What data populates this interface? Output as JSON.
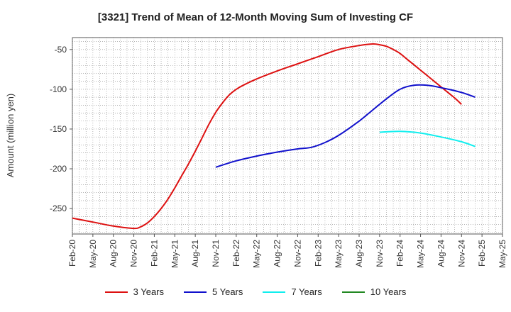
{
  "chart_data": {
    "type": "line",
    "title": "[3321]  Trend of Mean of 12-Month Moving Sum of Investing CF",
    "ylabel": "Amount (million yen)",
    "xlabel": "",
    "ylim": [
      -282,
      -35
    ],
    "yticks": [
      -50,
      -100,
      -150,
      -200,
      -250
    ],
    "xticks": [
      "Feb-20",
      "May-20",
      "Aug-20",
      "Nov-20",
      "Feb-21",
      "May-21",
      "Aug-21",
      "Nov-21",
      "Feb-22",
      "May-22",
      "Aug-22",
      "Nov-22",
      "Feb-23",
      "May-23",
      "Aug-23",
      "Nov-23",
      "Feb-24",
      "May-24",
      "Aug-24",
      "Nov-24",
      "Feb-25",
      "May-25"
    ],
    "grid": true,
    "legend_position": "bottom",
    "series": [
      {
        "name": "3 Years",
        "color": "#dd1111",
        "points": [
          [
            "Feb-20",
            -262
          ],
          [
            "May-20",
            -267
          ],
          [
            "Aug-20",
            -272
          ],
          [
            "Nov-20",
            -275
          ],
          [
            "Dec-20",
            -273
          ],
          [
            "Jan-21",
            -268
          ],
          [
            "Feb-21",
            -260
          ],
          [
            "Mar-21",
            -250
          ],
          [
            "Apr-21",
            -238
          ],
          [
            "May-21",
            -224
          ],
          [
            "Jun-21",
            -209
          ],
          [
            "Jul-21",
            -194
          ],
          [
            "Aug-21",
            -178
          ],
          [
            "Sep-21",
            -161
          ],
          [
            "Oct-21",
            -144
          ],
          [
            "Nov-21",
            -129
          ],
          [
            "Dec-21",
            -117
          ],
          [
            "Jan-22",
            -107
          ],
          [
            "Feb-22",
            -100
          ],
          [
            "Mar-22",
            -95
          ],
          [
            "May-22",
            -87
          ],
          [
            "Aug-22",
            -77
          ],
          [
            "Nov-22",
            -68
          ],
          [
            "Feb-23",
            -59
          ],
          [
            "May-23",
            -50
          ],
          [
            "Aug-23",
            -45
          ],
          [
            "Oct-23",
            -43
          ],
          [
            "Nov-23",
            -44
          ],
          [
            "Dec-23",
            -46
          ],
          [
            "Jan-24",
            -50
          ],
          [
            "Feb-24",
            -55
          ],
          [
            "Mar-24",
            -62
          ],
          [
            "May-24",
            -76
          ],
          [
            "Aug-24",
            -97
          ],
          [
            "Oct-24",
            -111
          ],
          [
            "Nov-24",
            -119
          ]
        ]
      },
      {
        "name": "5 Years",
        "color": "#1111cc",
        "points": [
          [
            "Nov-21",
            -198
          ],
          [
            "Feb-22",
            -190
          ],
          [
            "May-22",
            -184
          ],
          [
            "Aug-22",
            -179
          ],
          [
            "Nov-22",
            -175
          ],
          [
            "Jan-23",
            -173
          ],
          [
            "Mar-23",
            -167
          ],
          [
            "May-23",
            -158
          ],
          [
            "Aug-23",
            -140
          ],
          [
            "Oct-23",
            -126
          ],
          [
            "Dec-23",
            -112
          ],
          [
            "Feb-24",
            -100
          ],
          [
            "Apr-24",
            -95
          ],
          [
            "Jun-24",
            -95
          ],
          [
            "Aug-24",
            -98
          ],
          [
            "Nov-24",
            -104
          ],
          [
            "Jan-25",
            -110
          ]
        ]
      },
      {
        "name": "7 Years",
        "color": "#11eeee",
        "points": [
          [
            "Nov-23",
            -154
          ],
          [
            "Feb-24",
            -153
          ],
          [
            "May-24",
            -155
          ],
          [
            "Aug-24",
            -160
          ],
          [
            "Nov-24",
            -166
          ],
          [
            "Jan-25",
            -172
          ]
        ]
      },
      {
        "name": "10 Years",
        "color": "#228822",
        "points": []
      }
    ]
  }
}
